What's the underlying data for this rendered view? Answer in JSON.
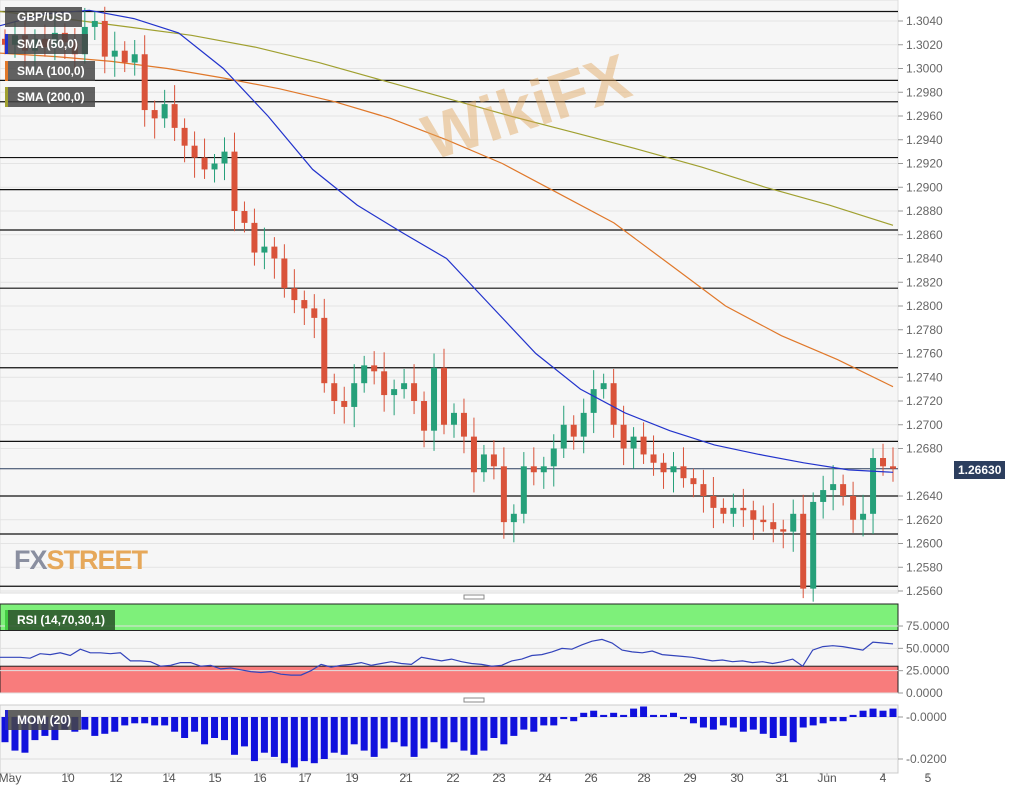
{
  "symbol": "GBP/USD",
  "indicators": [
    {
      "label": "SMA (50,0)",
      "color": "#2233cc"
    },
    {
      "label": "SMA (100,0)",
      "color": "#e0782a"
    },
    {
      "label": "SMA (200,0)",
      "color": "#a0a030"
    }
  ],
  "current_price": "1.26630",
  "logo": {
    "part1": "FX",
    "part2": "STREET"
  },
  "watermark": "WikiFX",
  "chart_data": [
    {
      "type": "candlestick",
      "title": "GBP/USD",
      "ylim": [
        1.2555,
        1.3055
      ],
      "y_ticks": [
        "1.3040",
        "1.3020",
        "1.3000",
        "1.2980",
        "1.2960",
        "1.2940",
        "1.2920",
        "1.2900",
        "1.2880",
        "1.2860",
        "1.2840",
        "1.2820",
        "1.2800",
        "1.2780",
        "1.2760",
        "1.2740",
        "1.2720",
        "1.2700",
        "1.2680",
        "1.2640",
        "1.2620",
        "1.2600",
        "1.2580",
        "1.2560"
      ],
      "horizontal_levels": [
        1.3048,
        1.299,
        1.2972,
        1.2925,
        1.2898,
        1.2864,
        1.2815,
        1.2748,
        1.2686,
        1.264,
        1.2608,
        1.2564
      ],
      "x_ticks": [
        "May",
        "10",
        "12",
        "14",
        "15",
        "16",
        "17",
        "19",
        "21",
        "22",
        "23",
        "24",
        "26",
        "28",
        "29",
        "30",
        "31",
        "Jun",
        "4",
        "5"
      ],
      "colors": {
        "up": "#26a07a",
        "down": "#d9533a"
      },
      "close": [
        1.302,
        1.3028,
        1.3015,
        1.3025,
        1.3018,
        1.303,
        1.3022,
        1.3012,
        1.3035,
        1.304,
        1.301,
        1.3015,
        1.3005,
        1.3012,
        1.2965,
        1.2958,
        1.297,
        1.295,
        1.2935,
        1.2925,
        1.2915,
        1.292,
        1.293,
        1.288,
        1.287,
        1.2845,
        1.285,
        1.284,
        1.2815,
        1.2805,
        1.2798,
        1.279,
        1.2735,
        1.272,
        1.2715,
        1.2735,
        1.275,
        1.2745,
        1.2725,
        1.273,
        1.2735,
        1.272,
        1.2695,
        1.2748,
        1.27,
        1.271,
        1.269,
        1.266,
        1.2675,
        1.2665,
        1.2618,
        1.2625,
        1.2665,
        1.266,
        1.2665,
        1.268,
        1.27,
        1.269,
        1.271,
        1.273,
        1.2735,
        1.27,
        1.268,
        1.269,
        1.2675,
        1.2668,
        1.266,
        1.2665,
        1.2655,
        1.265,
        1.264,
        1.263,
        1.2625,
        1.263,
        1.2628,
        1.262,
        1.2618,
        1.2612,
        1.261,
        1.2625,
        1.2562,
        1.2635,
        1.2645,
        1.265,
        1.264,
        1.262,
        1.2625,
        1.2672,
        1.2665,
        1.2663
      ],
      "sma50": [
        1.3036,
        1.3046,
        1.3049,
        1.3042,
        1.303,
        1.3,
        1.296,
        1.2915,
        1.2885,
        1.2862,
        1.284,
        1.28,
        1.276,
        1.273,
        1.271,
        1.2695,
        1.2683,
        1.2675,
        1.2668,
        1.2662,
        1.266
      ],
      "sma100": [
        1.3013,
        1.301,
        1.3006,
        1.3,
        1.2992,
        1.2983,
        1.2972,
        1.2958,
        1.294,
        1.292,
        1.2895,
        1.287,
        1.2835,
        1.28,
        1.2775,
        1.2755,
        1.2732
      ],
      "sma200": [
        1.3048,
        1.3042,
        1.3035,
        1.3028,
        1.3018,
        1.3005,
        1.299,
        1.2975,
        1.296,
        1.2946,
        1.2932,
        1.2917,
        1.29,
        1.2885,
        1.2868
      ]
    },
    {
      "type": "line",
      "title": "RSI (14,70,30,1)",
      "ylim": [
        0,
        100
      ],
      "y_ticks": [
        "75.0000",
        "50.0000",
        "25.0000",
        "0.0000"
      ],
      "overbought": 70,
      "oversold": 30,
      "values": [
        40,
        40,
        40,
        39,
        44,
        43,
        45,
        42,
        49,
        45,
        45,
        44,
        45,
        36,
        36,
        35,
        30,
        31,
        34,
        34,
        30,
        31,
        27,
        28,
        26,
        24,
        23,
        24,
        21,
        20,
        20,
        25,
        32,
        29,
        31,
        32,
        34,
        31,
        33,
        35,
        33,
        32,
        40,
        38,
        36,
        38,
        35,
        33,
        32,
        30,
        31,
        36,
        38,
        42,
        43,
        46,
        50,
        49,
        54,
        58,
        60,
        56,
        48,
        46,
        45,
        47,
        43,
        42,
        41,
        40,
        38,
        36,
        37,
        35,
        36,
        34,
        35,
        33,
        35,
        38,
        30,
        48,
        52,
        53,
        52,
        50,
        48,
        57,
        56,
        55
      ]
    },
    {
      "type": "bar",
      "title": "MOM (20)",
      "y_ticks": [
        "-0.0000",
        "-0.0200"
      ],
      "values": [
        -0.012,
        -0.016,
        -0.017,
        -0.011,
        -0.009,
        -0.011,
        -0.006,
        -0.007,
        -0.006,
        -0.009,
        -0.008,
        -0.007,
        -0.004,
        -0.003,
        -0.003,
        -0.004,
        -0.004,
        -0.007,
        -0.01,
        -0.007,
        -0.013,
        -0.01,
        -0.011,
        -0.018,
        -0.014,
        -0.021,
        -0.017,
        -0.019,
        -0.022,
        -0.024,
        -0.021,
        -0.022,
        -0.02,
        -0.017,
        -0.018,
        -0.013,
        -0.016,
        -0.019,
        -0.015,
        -0.012,
        -0.014,
        -0.019,
        -0.015,
        -0.012,
        -0.015,
        -0.012,
        -0.016,
        -0.018,
        -0.016,
        -0.01,
        -0.013,
        -0.009,
        -0.006,
        -0.007,
        -0.004,
        -0.004,
        -0.001,
        -0.002,
        0.002,
        0.003,
        0.001,
        0.002,
        0.001,
        0.004,
        0.005,
        0.001,
        0.001,
        0.002,
        -0.001,
        -0.003,
        -0.005,
        -0.006,
        -0.004,
        -0.005,
        -0.007,
        -0.006,
        -0.008,
        -0.01,
        -0.009,
        -0.012,
        -0.005,
        -0.004,
        -0.003,
        -0.002,
        -0.002,
        0.001,
        0.003,
        0.004,
        0.003,
        0.004
      ]
    }
  ]
}
